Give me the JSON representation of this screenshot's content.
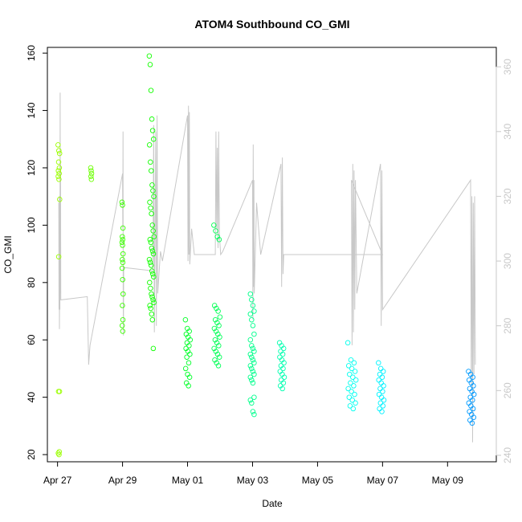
{
  "chart_data": {
    "type": "scatter",
    "title": "ATOM4 Southbound CO_GMI",
    "xlabel": "Date",
    "ylabel": "CO_GMI",
    "xlim": [
      "2018-04-26 16:30",
      "2018-05-10 12:00"
    ],
    "ylim": [
      17.5,
      162
    ],
    "y_ticks": [
      20,
      40,
      60,
      80,
      100,
      120,
      140,
      160
    ],
    "x_ticks": [
      {
        "label": "Apr 27",
        "date": "2018-04-27"
      },
      {
        "label": "Apr 29",
        "date": "2018-04-29"
      },
      {
        "label": "May 01",
        "date": "2018-05-01"
      },
      {
        "label": "May 03",
        "date": "2018-05-03"
      },
      {
        "label": "May 05",
        "date": "2018-05-05"
      },
      {
        "label": "May 07",
        "date": "2018-05-07"
      },
      {
        "label": "May 09",
        "date": "2018-05-09"
      }
    ],
    "y2_ticks": [
      240,
      260,
      280,
      300,
      320,
      340,
      360
    ],
    "y2lim": [
      238,
      366
    ],
    "grid": false,
    "legend": "none",
    "point_color_scale": {
      "start": "#9bff00",
      "mid1": "#00ff00",
      "mid2": "#00ffa0",
      "mid3": "#00ffff",
      "end": "#0099ff"
    },
    "secondary_line_color": "#c8c8c8",
    "clusters": [
      {
        "date": "2018-04-27 01:00",
        "spread_hours": 1.2,
        "values": [
          128,
          126,
          125,
          122,
          120,
          119,
          118,
          117,
          116,
          109,
          89,
          42,
          42,
          21,
          20.5,
          20
        ]
      },
      {
        "date": "2018-04-28 00:50",
        "spread_hours": 0.6,
        "values": [
          120,
          119,
          118,
          117,
          116
        ]
      },
      {
        "date": "2018-04-29 00:00",
        "spread_hours": 0.8,
        "values": [
          108,
          107,
          99,
          96,
          95,
          94,
          93,
          90,
          88,
          87,
          85,
          81,
          76,
          72,
          67,
          65,
          63
        ]
      },
      {
        "date": "2018-04-29 21:30",
        "spread_hours": 3.5,
        "values": [
          159,
          156,
          147,
          137,
          133,
          130,
          128,
          122,
          119,
          114,
          112,
          110,
          108,
          106,
          104,
          100,
          98,
          96,
          95,
          94,
          92,
          91,
          90,
          88,
          87,
          86,
          84,
          83,
          82,
          80,
          78,
          76,
          75,
          74,
          73,
          72,
          71,
          69,
          67,
          57
        ]
      },
      {
        "date": "2018-05-01 00:10",
        "spread_hours": 3.5,
        "values": [
          67,
          64,
          63,
          62,
          61,
          60,
          59,
          58,
          57,
          56,
          55,
          54,
          52,
          50,
          48,
          47,
          45,
          44
        ]
      },
      {
        "date": "2018-05-01 21:40",
        "spread_hours": 4.5,
        "values": [
          100,
          98,
          96,
          95,
          72,
          71,
          70,
          68,
          67,
          66,
          65,
          64,
          63,
          62,
          61,
          60,
          59,
          58,
          57,
          56,
          55,
          54,
          53,
          52,
          51
        ]
      },
      {
        "date": "2018-05-03 00:10",
        "spread_hours": 3.5,
        "values": [
          76,
          74,
          72,
          70,
          69,
          67,
          65,
          62,
          60,
          58,
          57,
          56,
          55,
          54,
          53,
          52,
          51,
          50,
          49,
          48,
          47,
          46,
          45,
          40,
          39,
          38,
          35,
          34
        ]
      },
      {
        "date": "2018-05-03 21:40",
        "spread_hours": 3.5,
        "values": [
          59,
          58,
          57,
          56,
          55,
          54,
          53,
          52,
          51,
          50,
          49,
          48,
          47,
          46,
          45,
          44,
          43
        ]
      },
      {
        "date": "2018-05-06 01:20",
        "spread_hours": 6,
        "values": [
          59,
          53,
          52,
          51,
          50,
          49,
          48,
          47,
          46,
          45,
          44,
          43,
          42,
          41,
          40,
          39,
          38,
          37,
          36
        ]
      },
      {
        "date": "2018-05-06 23:00",
        "spread_hours": 4,
        "values": [
          52,
          50,
          49,
          48,
          47,
          46,
          45,
          44,
          43,
          42,
          41,
          40,
          39,
          38,
          37,
          36,
          35
        ]
      },
      {
        "date": "2018-05-09 17:30",
        "spread_hours": 4,
        "values": [
          49,
          48,
          47,
          46,
          45,
          44,
          43,
          42,
          41,
          40,
          39,
          38,
          37,
          36,
          35,
          34,
          33,
          32,
          31
        ]
      }
    ],
    "secondary_series": {
      "name": "",
      "axis": "right",
      "path": [
        [
          "2018-04-27 00:55",
          318
        ],
        [
          "2018-04-27 01:05",
          285
        ],
        [
          "2018-04-27 01:15",
          320
        ],
        [
          "2018-04-27 01:25",
          279
        ],
        [
          "2018-04-27 01:35",
          300
        ],
        [
          "2018-04-27 01:45",
          285
        ],
        [
          "2018-04-27 01:55",
          352
        ],
        [
          "2018-04-27 02:05",
          290
        ],
        [
          "2018-04-27 02:15",
          330
        ],
        [
          "2018-04-27 02:25",
          288
        ],
        [
          "2018-04-27 22:00",
          289
        ],
        [
          "2018-04-27 23:00",
          268
        ],
        [
          "2018-04-28 00:00",
          274
        ],
        [
          "2018-04-29 00:00",
          327
        ],
        [
          "2018-04-29 00:10",
          310
        ],
        [
          "2018-04-29 00:20",
          340
        ],
        [
          "2018-04-29 00:30",
          290
        ],
        [
          "2018-04-29 00:40",
          277
        ],
        [
          "2018-04-29 00:50",
          298
        ],
        [
          "2018-04-29 22:00",
          297
        ],
        [
          "2018-04-29 22:30",
          300
        ],
        [
          "2018-04-29 23:00",
          342
        ],
        [
          "2018-04-29 23:30",
          278
        ],
        [
          "2018-04-30 00:30",
          340
        ],
        [
          "2018-04-30 01:00",
          280
        ],
        [
          "2018-04-30 01:30",
          345
        ],
        [
          "2018-04-30 02:00",
          290
        ],
        [
          "2018-04-30 04:00",
          303
        ],
        [
          "2018-04-30 05:30",
          300
        ],
        [
          "2018-05-01 00:00",
          345
        ],
        [
          "2018-05-01 00:20",
          300
        ],
        [
          "2018-05-01 00:40",
          348
        ],
        [
          "2018-05-01 01:00",
          302
        ],
        [
          "2018-05-01 01:20",
          346
        ],
        [
          "2018-05-01 01:40",
          299
        ],
        [
          "2018-05-01 03:00",
          310
        ],
        [
          "2018-05-01 05:00",
          302
        ],
        [
          "2018-05-01 20:30",
          302
        ],
        [
          "2018-05-01 21:00",
          340
        ],
        [
          "2018-05-01 21:30",
          310
        ],
        [
          "2018-05-01 22:00",
          335
        ],
        [
          "2018-05-01 22:30",
          304
        ],
        [
          "2018-05-01 23:00",
          340
        ],
        [
          "2018-05-01 23:30",
          308
        ],
        [
          "2018-05-02 00:30",
          302
        ],
        [
          "2018-05-02 02:00",
          303
        ],
        [
          "2018-05-03 00:00",
          325
        ],
        [
          "2018-05-03 00:15",
          282
        ],
        [
          "2018-05-03 00:30",
          336
        ],
        [
          "2018-05-03 00:45",
          292
        ],
        [
          "2018-05-03 01:00",
          325
        ],
        [
          "2018-05-03 01:15",
          290
        ],
        [
          "2018-05-03 03:00",
          318
        ],
        [
          "2018-05-03 06:00",
          302
        ],
        [
          "2018-05-03 21:00",
          330
        ],
        [
          "2018-05-03 21:30",
          292
        ],
        [
          "2018-05-03 22:00",
          332
        ],
        [
          "2018-05-03 22:30",
          296
        ],
        [
          "2018-05-03 23:00",
          302
        ],
        [
          "2018-05-07 00:00",
          302
        ],
        [
          "2018-05-06 01:00",
          325
        ],
        [
          "2018-05-06 01:30",
          274
        ],
        [
          "2018-05-06 02:00",
          330
        ],
        [
          "2018-05-06 02:30",
          278
        ],
        [
          "2018-05-06 03:00",
          328
        ],
        [
          "2018-05-06 03:30",
          285
        ],
        [
          "2018-05-06 04:00",
          325
        ],
        [
          "2018-05-06 05:00",
          290
        ],
        [
          "2018-05-06 22:30",
          330
        ],
        [
          "2018-05-06 23:00",
          280
        ],
        [
          "2018-05-06 23:30",
          328
        ],
        [
          "2018-05-07 00:00",
          285
        ],
        [
          "2018-05-09 17:00",
          325
        ],
        [
          "2018-05-09 17:30",
          262
        ],
        [
          "2018-05-09 18:00",
          320
        ],
        [
          "2018-05-09 18:30",
          244
        ],
        [
          "2018-05-09 19:00",
          318
        ],
        [
          "2018-05-09 19:30",
          265
        ],
        [
          "2018-05-09 20:00",
          320
        ],
        [
          "2018-05-09 20:30",
          268
        ]
      ]
    }
  }
}
